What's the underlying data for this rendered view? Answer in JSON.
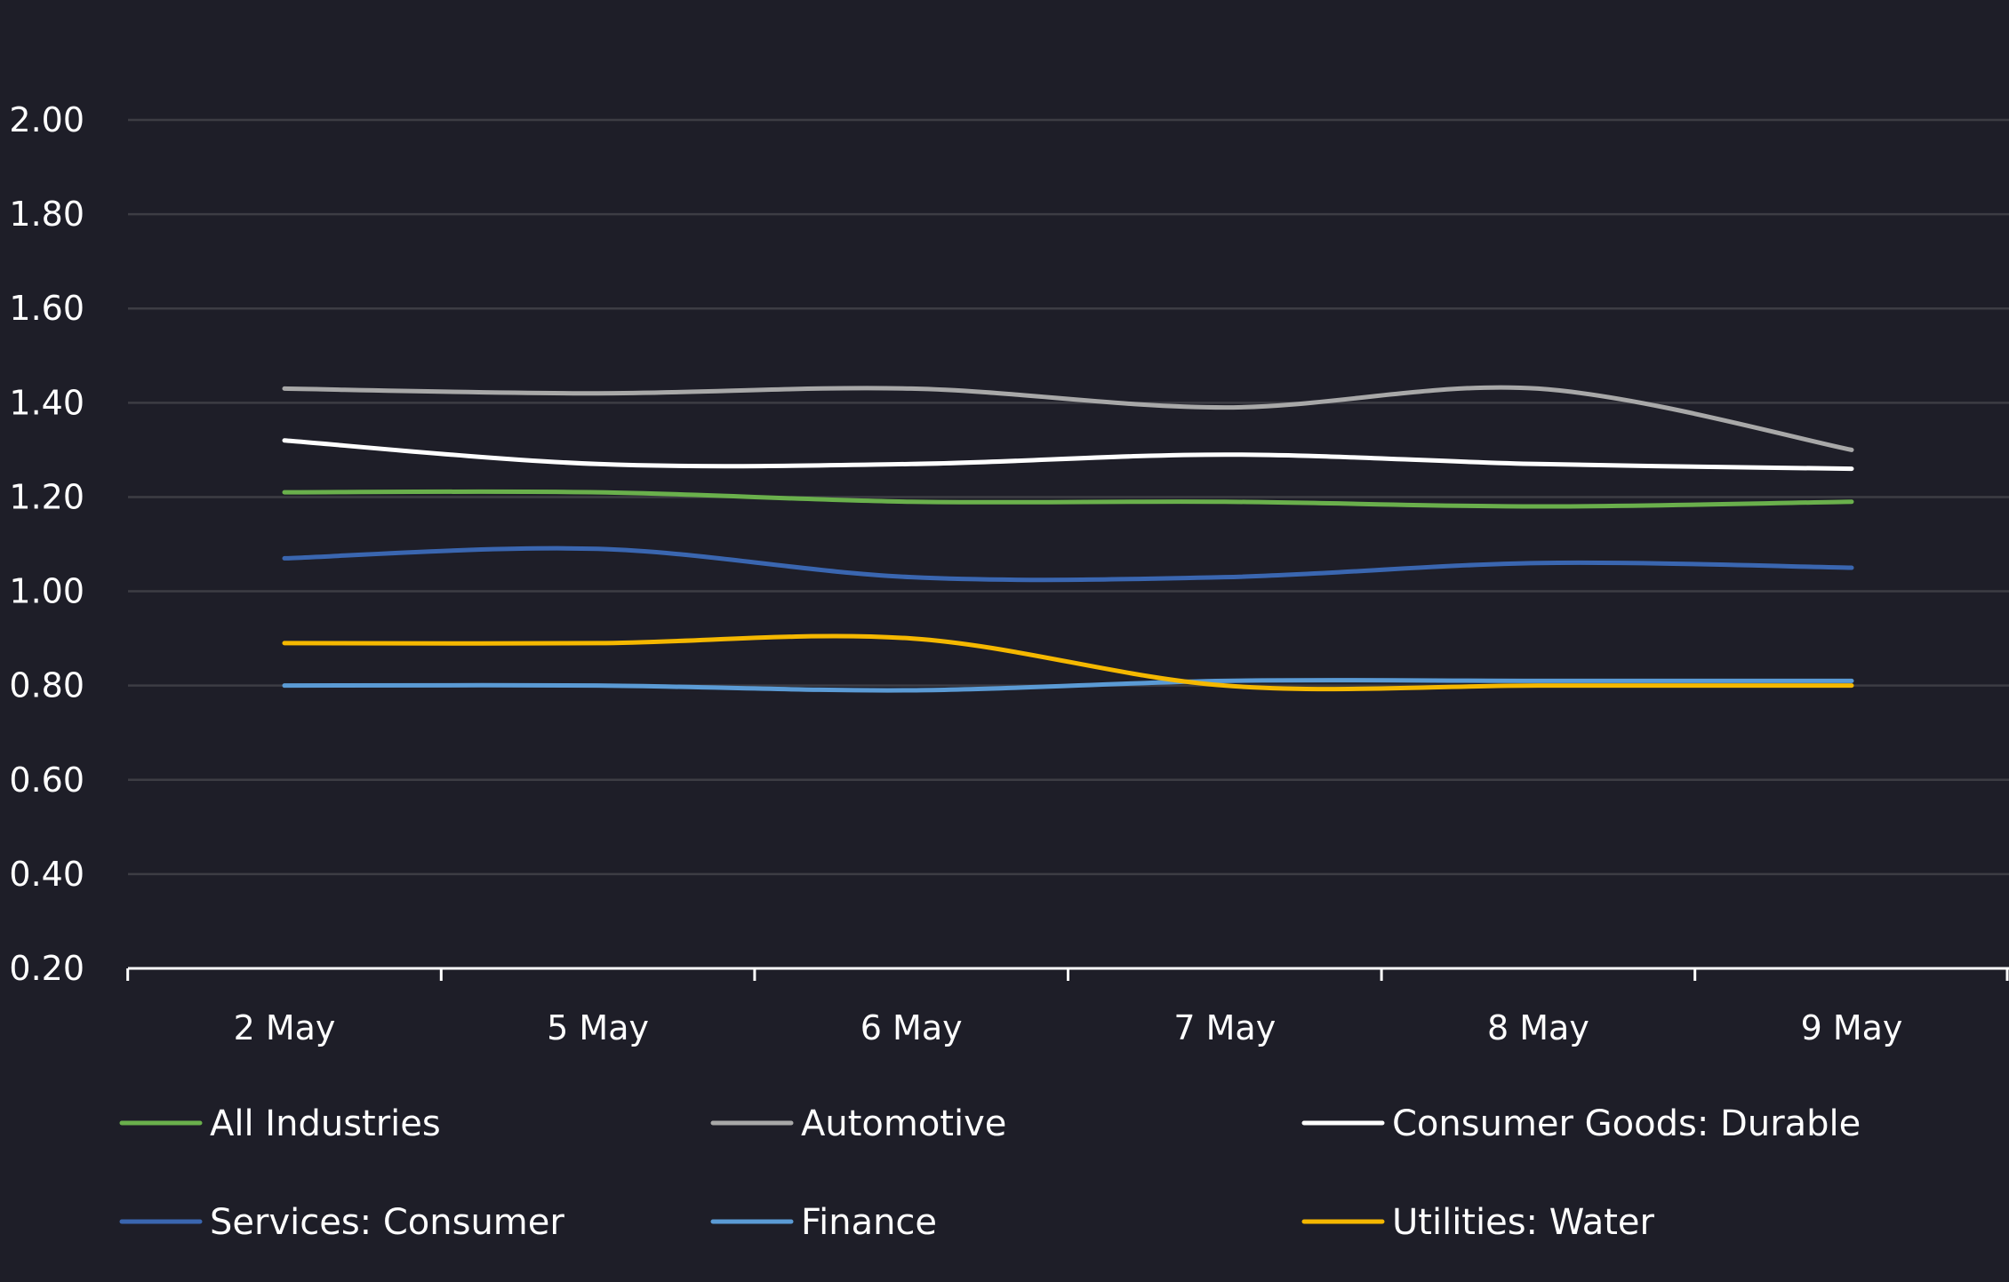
{
  "chart_data": {
    "type": "line",
    "title": "",
    "xlabel": "",
    "ylabel": "",
    "categories": [
      "2 May",
      "5 May",
      "6 May",
      "7 May",
      "8 May",
      "9 May"
    ],
    "ylim": [
      0.2,
      2.0
    ],
    "yticks": [
      "0.20",
      "0.40",
      "0.60",
      "0.80",
      "1.00",
      "1.20",
      "1.40",
      "1.60",
      "1.80",
      "2.00"
    ],
    "grid": true,
    "legend_position": "bottom",
    "series": [
      {
        "name": "All Industries",
        "color": "#6ab04c",
        "values": [
          1.21,
          1.21,
          1.19,
          1.19,
          1.18,
          1.19
        ]
      },
      {
        "name": "Automotive",
        "color": "#a8a8a8",
        "values": [
          1.43,
          1.42,
          1.43,
          1.39,
          1.43,
          1.3
        ]
      },
      {
        "name": "Consumer Goods: Durable",
        "color": "#ffffff",
        "values": [
          1.32,
          1.27,
          1.27,
          1.29,
          1.27,
          1.26
        ]
      },
      {
        "name": "Services: Consumer",
        "color": "#3a66b0",
        "values": [
          1.07,
          1.09,
          1.03,
          1.03,
          1.06,
          1.05
        ]
      },
      {
        "name": "Finance",
        "color": "#5b9bd5",
        "values": [
          0.8,
          0.8,
          0.79,
          0.81,
          0.81,
          0.81
        ]
      },
      {
        "name": "Utilities: Water",
        "color": "#f5b800",
        "values": [
          0.89,
          0.89,
          0.9,
          0.8,
          0.8,
          0.8
        ]
      }
    ]
  }
}
